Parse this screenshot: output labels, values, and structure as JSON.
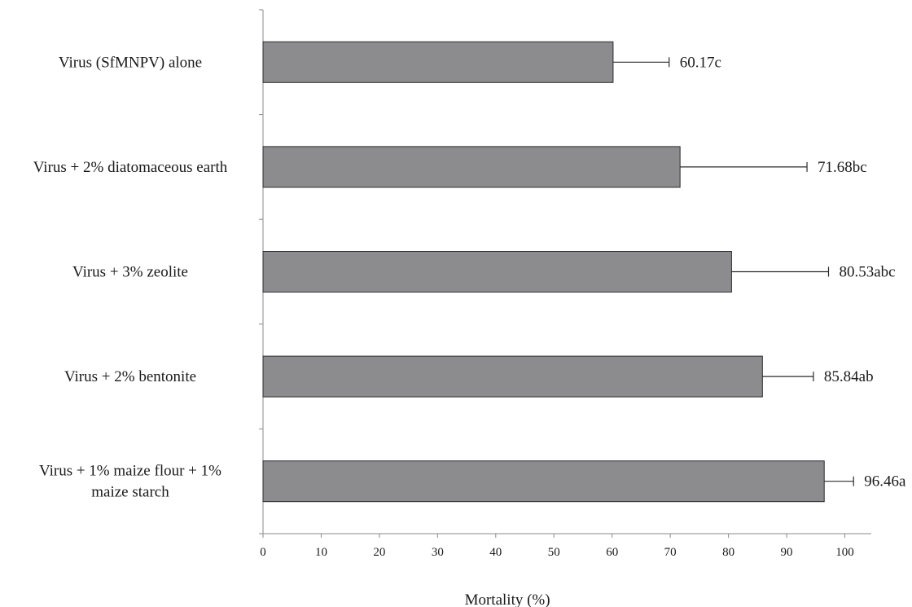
{
  "chart_data": {
    "type": "bar",
    "orientation": "horizontal",
    "categories": [
      "Virus (SfMNPV) alone",
      "Virus + 2% diatomaceous earth",
      "Virus + 3% zeolite",
      "Virus + 2% bentonite",
      "Virus + 1% maize flour + 1% maize starch"
    ],
    "category_label_lines": [
      [
        "Virus (SfMNPV) alone"
      ],
      [
        "Virus + 2% diatomaceous earth"
      ],
      [
        "Virus + 3% zeolite"
      ],
      [
        "Virus + 2% bentonite"
      ],
      [
        "Virus + 1% maize flour + 1%",
        "maize starch"
      ]
    ],
    "values": [
      60.17,
      71.68,
      80.53,
      85.84,
      96.46
    ],
    "error_upper": [
      69.8,
      93.5,
      97.2,
      94.6,
      101.5
    ],
    "data_labels": [
      "60.17c",
      "71.68bc",
      "80.53abc",
      "85.84ab",
      "96.46a"
    ],
    "xlabel": "Mortality (%)",
    "ylabel": "",
    "title": "",
    "xlim": [
      0,
      105
    ],
    "xticks": [
      0,
      10,
      20,
      30,
      40,
      50,
      60,
      70,
      80,
      90,
      100
    ],
    "grid": false,
    "colors": {
      "bar": "#8c8c8e",
      "bar_edge": "#2b2b2b",
      "axis": "#8a8a8a",
      "text": "#1a1a1a"
    }
  }
}
